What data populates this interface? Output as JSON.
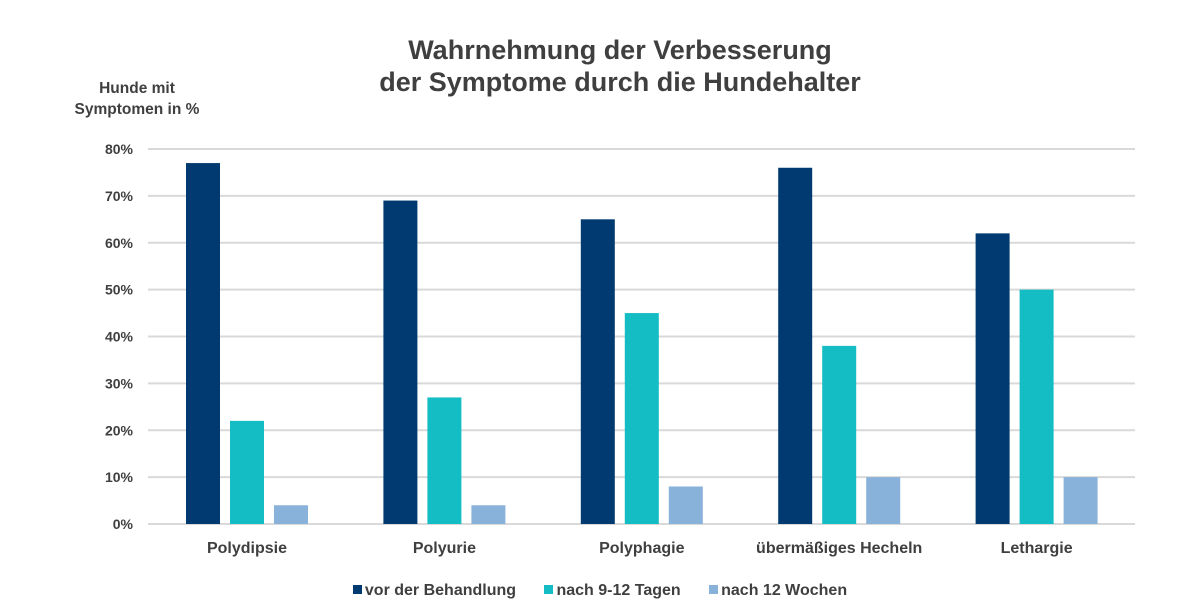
{
  "chart_data": {
    "type": "bar",
    "title": "Wahrnehmung der Verbesserung der Symptome durch die Hundehalter",
    "title_lines": [
      "Wahrnehmung der Verbesserung",
      "der Symptome durch die Hundehalter"
    ],
    "ylabel": "Hunde mit Symptomen in %",
    "ylabel_lines": [
      "Hunde mit",
      "Symptomen in %"
    ],
    "xlabel": "",
    "ylim": [
      0,
      80
    ],
    "yticks": [
      0,
      10,
      20,
      30,
      40,
      50,
      60,
      70,
      80
    ],
    "ytick_labels": [
      "0%",
      "10%",
      "20%",
      "30%",
      "40%",
      "50%",
      "60%",
      "70%",
      "80%"
    ],
    "grid": true,
    "legend_position": "bottom",
    "categories": [
      "Polydipsie",
      "Polyurie",
      "Polyphagie",
      "übermäßiges Hecheln",
      "Lethargie"
    ],
    "series": [
      {
        "name": "vor der Behandlung",
        "color": "#003a70",
        "values": [
          77,
          69,
          65,
          76,
          62
        ]
      },
      {
        "name": "nach 9-12 Tagen",
        "color": "#13bdc3",
        "values": [
          22,
          27,
          45,
          38,
          50
        ]
      },
      {
        "name": "nach 12 Wochen",
        "color": "#88b2da",
        "values": [
          4,
          4,
          8,
          10,
          10
        ]
      }
    ]
  }
}
